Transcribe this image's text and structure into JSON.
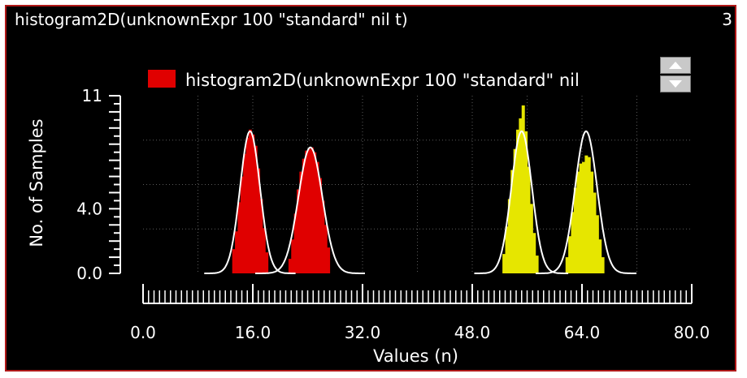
{
  "window": {
    "title": "histogram2D(unknownExpr 100 \"standard\" nil t)",
    "badge": "3"
  },
  "colors": {
    "background": "#000000",
    "frame": "#b01818",
    "series_red": "#e00000",
    "series_yellow": "#e6e600",
    "curve": "#ffffff",
    "grid": "#5a5a5a"
  },
  "legend": {
    "label": "histogram2D(unknownExpr 100 \"standard\" nil",
    "swatch_color": "#e00000",
    "scroll_up_icon": "arrow-up-icon",
    "scroll_down_icon": "arrow-down-icon"
  },
  "chart_data": {
    "type": "bar",
    "xlabel": "Values (n)",
    "ylabel": "No. of Samples",
    "xlim": [
      0.0,
      80.0
    ],
    "ylim": [
      0,
      11
    ],
    "xticks": [
      "0.0",
      "16.0",
      "32.0",
      "48.0",
      "64.0",
      "80.0"
    ],
    "xtick_values": [
      0,
      16,
      32,
      48,
      64,
      80
    ],
    "yticks": [
      "0.0",
      "4.0",
      "11"
    ],
    "ytick_values": [
      0,
      4,
      11
    ],
    "grid": true,
    "legend_position": "top",
    "series": [
      {
        "color": "#e00000",
        "bars": [
          {
            "x": 13.2,
            "y": 1.5
          },
          {
            "x": 13.6,
            "y": 2.6
          },
          {
            "x": 14.0,
            "y": 4.4
          },
          {
            "x": 14.4,
            "y": 6.0
          },
          {
            "x": 14.8,
            "y": 7.4
          },
          {
            "x": 15.2,
            "y": 8.4
          },
          {
            "x": 15.6,
            "y": 8.9
          },
          {
            "x": 16.0,
            "y": 8.6
          },
          {
            "x": 16.4,
            "y": 7.9
          },
          {
            "x": 16.8,
            "y": 6.5
          },
          {
            "x": 17.2,
            "y": 4.6
          },
          {
            "x": 17.6,
            "y": 2.8
          },
          {
            "x": 18.0,
            "y": 1.3
          },
          {
            "x": 21.4,
            "y": 0.9
          },
          {
            "x": 21.8,
            "y": 2.1
          },
          {
            "x": 22.2,
            "y": 3.7
          },
          {
            "x": 22.6,
            "y": 5.2
          },
          {
            "x": 23.0,
            "y": 6.3
          },
          {
            "x": 23.4,
            "y": 7.1
          },
          {
            "x": 23.8,
            "y": 7.6
          },
          {
            "x": 24.2,
            "y": 7.7
          },
          {
            "x": 24.6,
            "y": 7.8
          },
          {
            "x": 25.0,
            "y": 7.5
          },
          {
            "x": 25.4,
            "y": 6.9
          },
          {
            "x": 25.8,
            "y": 5.9
          },
          {
            "x": 26.2,
            "y": 4.5
          },
          {
            "x": 26.6,
            "y": 3.0
          },
          {
            "x": 27.0,
            "y": 1.6
          }
        ]
      },
      {
        "color": "#e6e600",
        "bars": [
          {
            "x": 52.6,
            "y": 1.2
          },
          {
            "x": 53.0,
            "y": 2.9
          },
          {
            "x": 53.4,
            "y": 4.6
          },
          {
            "x": 53.8,
            "y": 6.4
          },
          {
            "x": 54.2,
            "y": 7.7
          },
          {
            "x": 54.6,
            "y": 8.9
          },
          {
            "x": 55.0,
            "y": 9.6
          },
          {
            "x": 55.4,
            "y": 10.4
          },
          {
            "x": 55.8,
            "y": 8.8
          },
          {
            "x": 56.2,
            "y": 6.6
          },
          {
            "x": 56.6,
            "y": 4.3
          },
          {
            "x": 57.0,
            "y": 2.5
          },
          {
            "x": 57.4,
            "y": 1.1
          },
          {
            "x": 61.8,
            "y": 1.0
          },
          {
            "x": 62.2,
            "y": 2.3
          },
          {
            "x": 62.6,
            "y": 3.8
          },
          {
            "x": 63.0,
            "y": 5.3
          },
          {
            "x": 63.4,
            "y": 6.3
          },
          {
            "x": 63.8,
            "y": 6.8
          },
          {
            "x": 64.2,
            "y": 6.9
          },
          {
            "x": 64.6,
            "y": 7.3
          },
          {
            "x": 65.0,
            "y": 7.2
          },
          {
            "x": 65.4,
            "y": 6.3
          },
          {
            "x": 65.8,
            "y": 5.0
          },
          {
            "x": 66.2,
            "y": 3.6
          },
          {
            "x": 66.6,
            "y": 2.1
          },
          {
            "x": 67.0,
            "y": 1.0
          }
        ]
      }
    ],
    "fit_curves": [
      {
        "mean": 15.6,
        "sd": 1.45,
        "peak": 8.8
      },
      {
        "mean": 24.4,
        "sd": 1.75,
        "peak": 7.8
      },
      {
        "mean": 55.2,
        "sd": 1.5,
        "peak": 8.8
      },
      {
        "mean": 64.6,
        "sd": 1.6,
        "peak": 8.8
      }
    ]
  }
}
